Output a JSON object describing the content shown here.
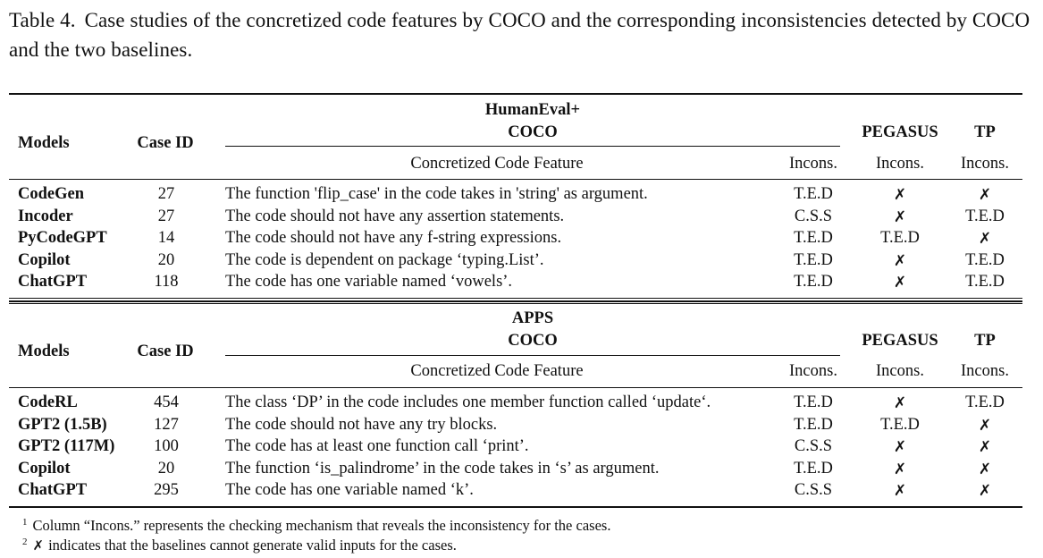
{
  "caption": {
    "label": "Table 4.",
    "text": "Case studies of the concretized code features by COCO and the corresponding inconsistencies detected by COCO and the two baselines."
  },
  "cross_symbol": "✗",
  "sections": [
    {
      "dataset": "HumanEval+",
      "header": {
        "models": "Models",
        "case_id": "Case ID",
        "coco": "COCO",
        "feature": "Concretized Code Feature",
        "incons": "Incons.",
        "pegasus": "PEGASUS",
        "pegasus_incons": "Incons.",
        "tp": "TP",
        "tp_incons": "Incons."
      },
      "rows": [
        {
          "model": "CodeGen",
          "case_id": "27",
          "feature": "The function 'flip_case' in the code takes in 'string' as argument.",
          "coco": "T.E.D",
          "pegasus": "✗",
          "tp": "✗"
        },
        {
          "model": "Incoder",
          "case_id": "27",
          "feature": "The code should not have any assertion statements.",
          "coco": "C.S.S",
          "pegasus": "✗",
          "tp": "T.E.D"
        },
        {
          "model": "PyCodeGPT",
          "case_id": "14",
          "feature": "The code should not have any f-string expressions.",
          "coco": "T.E.D",
          "pegasus": "T.E.D",
          "tp": "✗"
        },
        {
          "model": "Copilot",
          "case_id": "20",
          "feature": "The code is dependent on package ‘typing.List’.",
          "coco": "T.E.D",
          "pegasus": "✗",
          "tp": "T.E.D"
        },
        {
          "model": "ChatGPT",
          "case_id": "118",
          "feature": "The code has one variable named ‘vowels’.",
          "coco": "T.E.D",
          "pegasus": "✗",
          "tp": "T.E.D"
        }
      ]
    },
    {
      "dataset": "APPS",
      "header": {
        "models": "Models",
        "case_id": "Case ID",
        "coco": "COCO",
        "feature": "Concretized Code Feature",
        "incons": "Incons.",
        "pegasus": "PEGASUS",
        "pegasus_incons": "Incons.",
        "tp": "TP",
        "tp_incons": "Incons."
      },
      "rows": [
        {
          "model": "CodeRL",
          "case_id": "454",
          "feature": "The class ‘DP’ in the code includes one member function called ‘update‘.",
          "coco": "T.E.D",
          "pegasus": "✗",
          "tp": "T.E.D"
        },
        {
          "model": "GPT2 (1.5B)",
          "case_id": "127",
          "feature": "The code should not have any try blocks.",
          "coco": "T.E.D",
          "pegasus": "T.E.D",
          "tp": "✗"
        },
        {
          "model": "GPT2 (117M)",
          "case_id": "100",
          "feature": "The code has at least one function call ‘print’.",
          "coco": "C.S.S",
          "pegasus": "✗",
          "tp": "✗"
        },
        {
          "model": "Copilot",
          "case_id": "20",
          "feature": "The function ‘is_palindrome’ in the code takes in ‘s’ as argument.",
          "coco": "T.E.D",
          "pegasus": "✗",
          "tp": "✗"
        },
        {
          "model": "ChatGPT",
          "case_id": "295",
          "feature": "The code has one variable named ‘k’.",
          "coco": "C.S.S",
          "pegasus": "✗",
          "tp": "✗"
        }
      ]
    }
  ],
  "footnotes": [
    {
      "mark": "1",
      "text": "Column “Incons.” represents the checking mechanism that reveals the inconsistency for the cases."
    },
    {
      "mark": "2",
      "symbol": "✗",
      "text": "indicates that the baselines cannot generate valid inputs for the cases."
    }
  ]
}
